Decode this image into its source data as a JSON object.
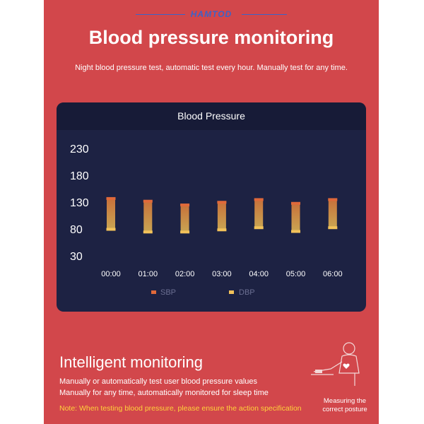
{
  "brand": "HAMTOD",
  "header": {
    "title": "Blood pressure monitoring",
    "subtitle": "Night blood pressure test, automatic test every hour. Manually test for any time."
  },
  "chart_card": {
    "title": "Blood Pressure"
  },
  "colors": {
    "background": "#d2474b",
    "card": "#1d2243",
    "sbp": "#e0693a",
    "dbp": "#f2c25a",
    "note": "#ffd23a"
  },
  "chart_data": {
    "type": "bar",
    "title": "Blood Pressure",
    "categories": [
      "00:00",
      "01:00",
      "02:00",
      "03:00",
      "04:00",
      "05:00",
      "06:00"
    ],
    "yticks": [
      30,
      80,
      130,
      180,
      230
    ],
    "ylim": [
      30,
      230
    ],
    "grid": false,
    "legend_position": "bottom",
    "series": [
      {
        "name": "SBP",
        "values": [
          138,
          133,
          126,
          131,
          136,
          129,
          136
        ]
      },
      {
        "name": "DBP",
        "values": [
          78,
          73,
          73,
          77,
          81,
          74,
          81
        ]
      }
    ]
  },
  "intelligent": {
    "title": "Intelligent monitoring",
    "line1": "Manually or automatically test user blood pressure values",
    "line2": "Manually for any time, automatically monitored for sleep time",
    "note": "Note: When testing blood pressure, please ensure the action specification"
  },
  "posture_caption": {
    "line1": "Measuring the",
    "line2": "correct posture"
  }
}
